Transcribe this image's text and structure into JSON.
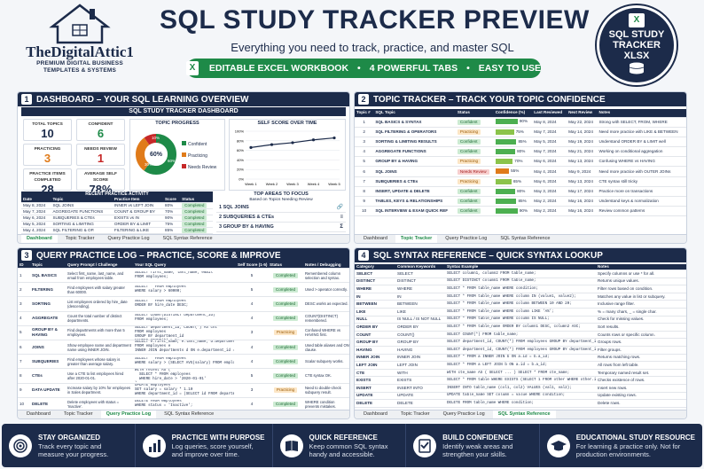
{
  "brand": {
    "name": "TheDigitalAttic1",
    "tagline_1": "PREMIUM DIGITAL BUSINESS",
    "tagline_2": "TEMPLATES & SYSTEMS"
  },
  "header": {
    "title": "SQL STUDY TRACKER PREVIEW",
    "subtitle": "Everything you need to track, practice, and master SQL",
    "features": [
      "EDITABLE EXCEL WORKBOOK",
      "4 POWERFUL TABS",
      "EASY TO USE"
    ],
    "separator": "•"
  },
  "badge": {
    "line1": "SQL STUDY",
    "line2": "TRACKER",
    "line3": "XLSX",
    "icon": "excel-icon"
  },
  "colors": {
    "navy": "#1c2b4a",
    "green": "#1e8a48",
    "orange": "#e07b1a",
    "red": "#c62828"
  },
  "panel1": {
    "num": "1",
    "title": "DASHBOARD – YOUR SQL LEARNING OVERVIEW",
    "sheet_title": "SQL STUDY TRACKER DASHBOARD",
    "kpis": [
      {
        "label": "TOTAL TOPICS",
        "value": "10"
      },
      {
        "label": "CONFIDENT",
        "value": "6"
      },
      {
        "label": "PRACTICING",
        "value": "3"
      },
      {
        "label": "NEEDS REVIEW",
        "value": "1"
      },
      {
        "label": "PRACTICE ITEMS COMPLETED",
        "value": "28"
      },
      {
        "label": "AVERAGE SELF SCORE",
        "value": "78%"
      }
    ],
    "progress": {
      "title": "TOPIC PROGRESS",
      "center": "60%",
      "slices": [
        {
          "label": "Confident",
          "pct": 60,
          "text": "60%"
        },
        {
          "label": "Practicing",
          "pct": 30,
          "text": "30%"
        },
        {
          "label": "Needs Review",
          "pct": 10,
          "text": "10%"
        }
      ]
    },
    "score": {
      "title": "SELF SCORE OVER TIME",
      "y_ticks": [
        "100%",
        "80%",
        "60%",
        "40%",
        "20%",
        "0%"
      ],
      "x": [
        "Week 1",
        "Week 2",
        "Week 3",
        "Week 4",
        "Week 5"
      ],
      "values": [
        0.66,
        0.72,
        0.76,
        0.82,
        0.86
      ]
    },
    "recent": {
      "title": "RECENT PRACTICE ACTIVITY",
      "headers": [
        "Date",
        "Topic",
        "Practice Item",
        "Score",
        "Status"
      ],
      "rows": [
        [
          "May 8, 2024",
          "SQL JOINS",
          "INNER vs LEFT JOIN",
          "80%",
          "Completed"
        ],
        [
          "May 7, 2024",
          "AGGREGATE FUNCTIONS",
          "COUNT & GROUP BY",
          "70%",
          "Completed"
        ],
        [
          "May 6, 2024",
          "SUBQUERIES & CTEs",
          "EXISTS vs IN",
          "90%",
          "Completed"
        ],
        [
          "May 5, 2024",
          "SORTING & LIMITING",
          "ORDER BY & LIMIT",
          "75%",
          "Completed"
        ],
        [
          "May 4, 2024",
          "SQL FILTERING & OP.",
          "FILTERING & LIKE",
          "85%",
          "Completed"
        ]
      ]
    },
    "focus": {
      "title": "TOP AREAS TO FOCUS",
      "sub": "Based on Topics Needing Review",
      "items": [
        "SQL JOINS",
        "SUBQUERIES & CTEs",
        "GROUP BY & HAVING"
      ]
    },
    "tabs": [
      "Dashboard",
      "Topic Tracker",
      "Query Practice Log",
      "SQL Syntax Reference"
    ],
    "active": 0
  },
  "panel2": {
    "num": "2",
    "title": "TOPIC TRACKER – TRACK YOUR TOPIC CONFIDENCE",
    "headers": [
      "Topic #",
      "SQL Topic",
      "Status",
      "Confidence (%)",
      "Last Reviewed",
      "Next Review",
      "Notes"
    ],
    "rows": [
      {
        "n": "1",
        "topic": "SQL BASICS & SYNTAX",
        "status": "Confident",
        "conf": 90,
        "last": "May 8, 2024",
        "next": "May 22, 2024",
        "notes": "Strong with SELECT, FROM, WHERE"
      },
      {
        "n": "2",
        "topic": "SQL FILTERING & OPERATORS",
        "status": "Practicing",
        "conf": 75,
        "last": "May 7, 2024",
        "next": "May 14, 2024",
        "notes": "Need more practice with LIKE & BETWEEN"
      },
      {
        "n": "3",
        "topic": "SORTING & LIMITING RESULTS",
        "status": "Confident",
        "conf": 85,
        "last": "May 5, 2024",
        "next": "May 19, 2024",
        "notes": "Understand ORDER BY & LIMIT well"
      },
      {
        "n": "4",
        "topic": "AGGREGATE FUNCTIONS",
        "status": "Confident",
        "conf": 80,
        "last": "May 7, 2024",
        "next": "May 21, 2024",
        "notes": "Working on conditional aggregation"
      },
      {
        "n": "5",
        "topic": "GROUP BY & HAVING",
        "status": "Practicing",
        "conf": 70,
        "last": "May 6, 2024",
        "next": "May 13, 2024",
        "notes": "Confusing WHERE vs HAVING"
      },
      {
        "n": "6",
        "topic": "SQL JOINS",
        "status": "Needs Review",
        "conf": 55,
        "last": "May 4, 2024",
        "next": "May 9, 2024",
        "notes": "Need more practice with OUTER JOINs"
      },
      {
        "n": "7",
        "topic": "SUBQUERIES & CTEs",
        "status": "Practicing",
        "conf": 65,
        "last": "May 6, 2024",
        "next": "May 13, 2024",
        "notes": "CTE syntax still tricky"
      },
      {
        "n": "8",
        "topic": "INSERT, UPDATE & DELETE",
        "status": "Confident",
        "conf": 80,
        "last": "May 3, 2024",
        "next": "May 17, 2024",
        "notes": "Practice more on transactions"
      },
      {
        "n": "9",
        "topic": "TABLES, KEYS & RELATIONSHIPS",
        "status": "Confident",
        "conf": 85,
        "last": "May 2, 2024",
        "next": "May 16, 2024",
        "notes": "Understand keys & normalization"
      },
      {
        "n": "10",
        "topic": "SQL INTERVIEW & EXAM QUICK REF",
        "status": "Confident",
        "conf": 90,
        "last": "May 2, 2024",
        "next": "May 16, 2024",
        "notes": "Review common patterns"
      }
    ],
    "tabs": [
      "Dashboard",
      "Topic Tracker",
      "Query Practice Log",
      "SQL Syntax Reference"
    ],
    "active": 1
  },
  "panel3": {
    "num": "3",
    "title": "QUERY PRACTICE LOG – PRACTICE, SCORE & IMPROVE",
    "headers": [
      "ID",
      "Topic",
      "Query Prompt / Challenge",
      "Your SQL Query",
      "Self Score (1-5)",
      "Status",
      "Notes / Debugging"
    ],
    "rows": [
      {
        "id": "1",
        "topic": "SQL BASICS",
        "prompt": "Select first_name, last_name, and email from employees table.",
        "query": "SELECT first_name, last_name, email\nFROM employees;",
        "score": "5",
        "status": "Completed",
        "notes": "Remembered column selection and syntax."
      },
      {
        "id": "2",
        "topic": "FILTERING",
        "prompt": "Find employees with salary greater than 60000.",
        "query": "SELECT * FROM employees\nWHERE salary > 60000;",
        "score": "5",
        "status": "Completed",
        "notes": "Used > operator correctly."
      },
      {
        "id": "3",
        "topic": "SORTING",
        "prompt": "List employees ordered by hire_date (descending).",
        "query": "SELECT * FROM employees\nORDER BY hire_date DESC;",
        "score": "4",
        "status": "Completed",
        "notes": "DESC works as expected."
      },
      {
        "id": "4",
        "topic": "AGGREGATE",
        "prompt": "Count the total number of distinct departments.",
        "query": "SELECT COUNT(DISTINCT department_id)\nFROM employees;",
        "score": "4",
        "status": "Completed",
        "notes": "COUNT(DISTINCT) remembered."
      },
      {
        "id": "5",
        "topic": "GROUP BY & HAVING",
        "prompt": "Find departments with more than 5 employees.",
        "query": "SELECT department_id, COUNT(*) AS cnt\nFROM employees\nGROUP BY department_id\nHAVING COUNT(*) > 5;",
        "score": "3",
        "status": "Practicing",
        "notes": "Confused WHERE vs HAVING first."
      },
      {
        "id": "6",
        "topic": "JOINS",
        "prompt": "Show employee name and department name using INNER JOIN.",
        "query": "SELECT e.first_name, e.last_name, d.department_name\nFROM employees e\nINNER JOIN departments d ON e.department_id = d.id;",
        "score": "4",
        "status": "Completed",
        "notes": "Used table aliases and ON clause."
      },
      {
        "id": "7",
        "topic": "SUBQUERIES",
        "prompt": "Find employees whose salary is greater than average salary.",
        "query": "SELECT * FROM employees\nWHERE salary > (SELECT AVG(salary) FROM employees);",
        "score": "4",
        "status": "Completed",
        "notes": "Scalar subquery works."
      },
      {
        "id": "8",
        "topic": "CTEs",
        "prompt": "Use a CTE to list employees hired after 2020-01-01.",
        "query": "WITH recent AS (\n  SELECT * FROM employees\n  WHERE hire_date > '2020-01-01'\n)\nSELECT * FROM recent;",
        "score": "5",
        "status": "Completed",
        "notes": "CTE syntax OK."
      },
      {
        "id": "9",
        "topic": "DATA UPDATE",
        "prompt": "Increase salary by 10% for employees in Sales department.",
        "query": "UPDATE employees\nSET salary = salary * 1.10\nWHERE department_id = (SELECT id FROM departments WHERE name = 'Sales');",
        "score": "3",
        "status": "Practicing",
        "notes": "Need to double-check subquery result."
      },
      {
        "id": "10",
        "topic": "DELETE",
        "prompt": "Delete employees with status = 'Inactive'.",
        "query": "DELETE FROM employees\nWHERE status = 'Inactive';",
        "score": "4",
        "status": "Completed",
        "notes": "WHERE condition prevents mistakes."
      }
    ],
    "tabs": [
      "Dashboard",
      "Topic Tracker",
      "Query Practice Log",
      "SQL Syntax Reference"
    ],
    "active": 2
  },
  "panel4": {
    "num": "4",
    "title": "SQL SYNTAX REFERENCE – QUICK SYNTAX LOOKUP",
    "headers": [
      "Category",
      "Common Keywords",
      "Syntax Example",
      "Notes"
    ],
    "rows": [
      [
        "SELECT",
        "SELECT",
        "SELECT column1, column2 FROM table_name;",
        "Specify columns or use * for all."
      ],
      [
        "DISTINCT",
        "DISTINCT",
        "SELECT DISTINCT column1 FROM table_name;",
        "Returns unique values."
      ],
      [
        "WHERE",
        "WHERE",
        "SELECT * FROM table_name WHERE condition;",
        "Filter rows based on condition."
      ],
      [
        "IN",
        "IN",
        "SELECT * FROM table_name WHERE column IN (value1, value2);",
        "Matches any value in list or subquery."
      ],
      [
        "BETWEEN",
        "BETWEEN",
        "SELECT * FROM table_name WHERE column BETWEEN 10 AND 20;",
        "Inclusive range filter."
      ],
      [
        "LIKE",
        "LIKE",
        "SELECT * FROM table_name WHERE column LIKE 'A%';",
        "% = many chars, _ = single char."
      ],
      [
        "NULL",
        "IS NULL / IS NOT NULL",
        "SELECT * FROM table_name WHERE column IS NULL;",
        "Check for missing values."
      ],
      [
        "ORDER BY",
        "ORDER BY",
        "SELECT * FROM table_name ORDER BY column1 DESC, column2 ASC;",
        "Sort results."
      ],
      [
        "COUNT",
        "COUNT()",
        "SELECT COUNT(*) FROM table_name;",
        "Counts rows or specific column."
      ],
      [
        "GROUP BY",
        "GROUP BY",
        "SELECT department_id, COUNT(*) FROM employees GROUP BY department_id;",
        "Groups rows."
      ],
      [
        "HAVING",
        "HAVING",
        "SELECT department_id, COUNT(*) FROM employees GROUP BY department_id HAVING COUNT(*) > 5;",
        "Filter groups."
      ],
      [
        "INNER JOIN",
        "INNER JOIN",
        "SELECT * FROM a INNER JOIN b ON a.id = b.a_id;",
        "Returns matching rows."
      ],
      [
        "LEFT JOIN",
        "LEFT JOIN",
        "SELECT * FROM a LEFT JOIN b ON a.id = b.a_id;",
        "All rows from left table."
      ],
      [
        "CTE",
        "WITH",
        "WITH cte_name AS ( SELECT ... ) SELECT * FROM cte_name;",
        "Temporary named result set."
      ],
      [
        "EXISTS",
        "EXISTS",
        "SELECT * FROM table WHERE EXISTS (SELECT 1 FROM other WHERE other.id = table.id);",
        "Checks existence of rows."
      ],
      [
        "INSERT",
        "INSERT INTO",
        "INSERT INTO table_name (col1, col2) VALUES (val1, val2);",
        "Insert new rows."
      ],
      [
        "UPDATE",
        "UPDATE",
        "UPDATE table_name SET column = value WHERE condition;",
        "Update existing rows."
      ],
      [
        "DELETE",
        "DELETE",
        "DELETE FROM table_name WHERE condition;",
        "Delete rows."
      ]
    ],
    "tabs": [
      "Dashboard",
      "Topic Tracker",
      "Query Practice Log",
      "SQL Syntax Reference"
    ],
    "active": 3
  },
  "footer": [
    {
      "icon": "target-icon",
      "title": "STAY ORGANIZED",
      "desc": "Track every topic and measure your progress."
    },
    {
      "icon": "bar-chart-icon",
      "title": "PRACTICE WITH PURPOSE",
      "desc": "Log queries, score yourself, and improve over time."
    },
    {
      "icon": "book-icon",
      "title": "QUICK REFERENCE",
      "desc": "Keep common SQL syntax handy and accessible."
    },
    {
      "icon": "checklist-icon",
      "title": "BUILD CONFIDENCE",
      "desc": "Identify weak areas and strengthen your skills."
    },
    {
      "icon": "graduation-cap-icon",
      "title": "EDUCATIONAL STUDY RESOURCE",
      "desc": "For learning & practice only. Not for production environments."
    }
  ]
}
